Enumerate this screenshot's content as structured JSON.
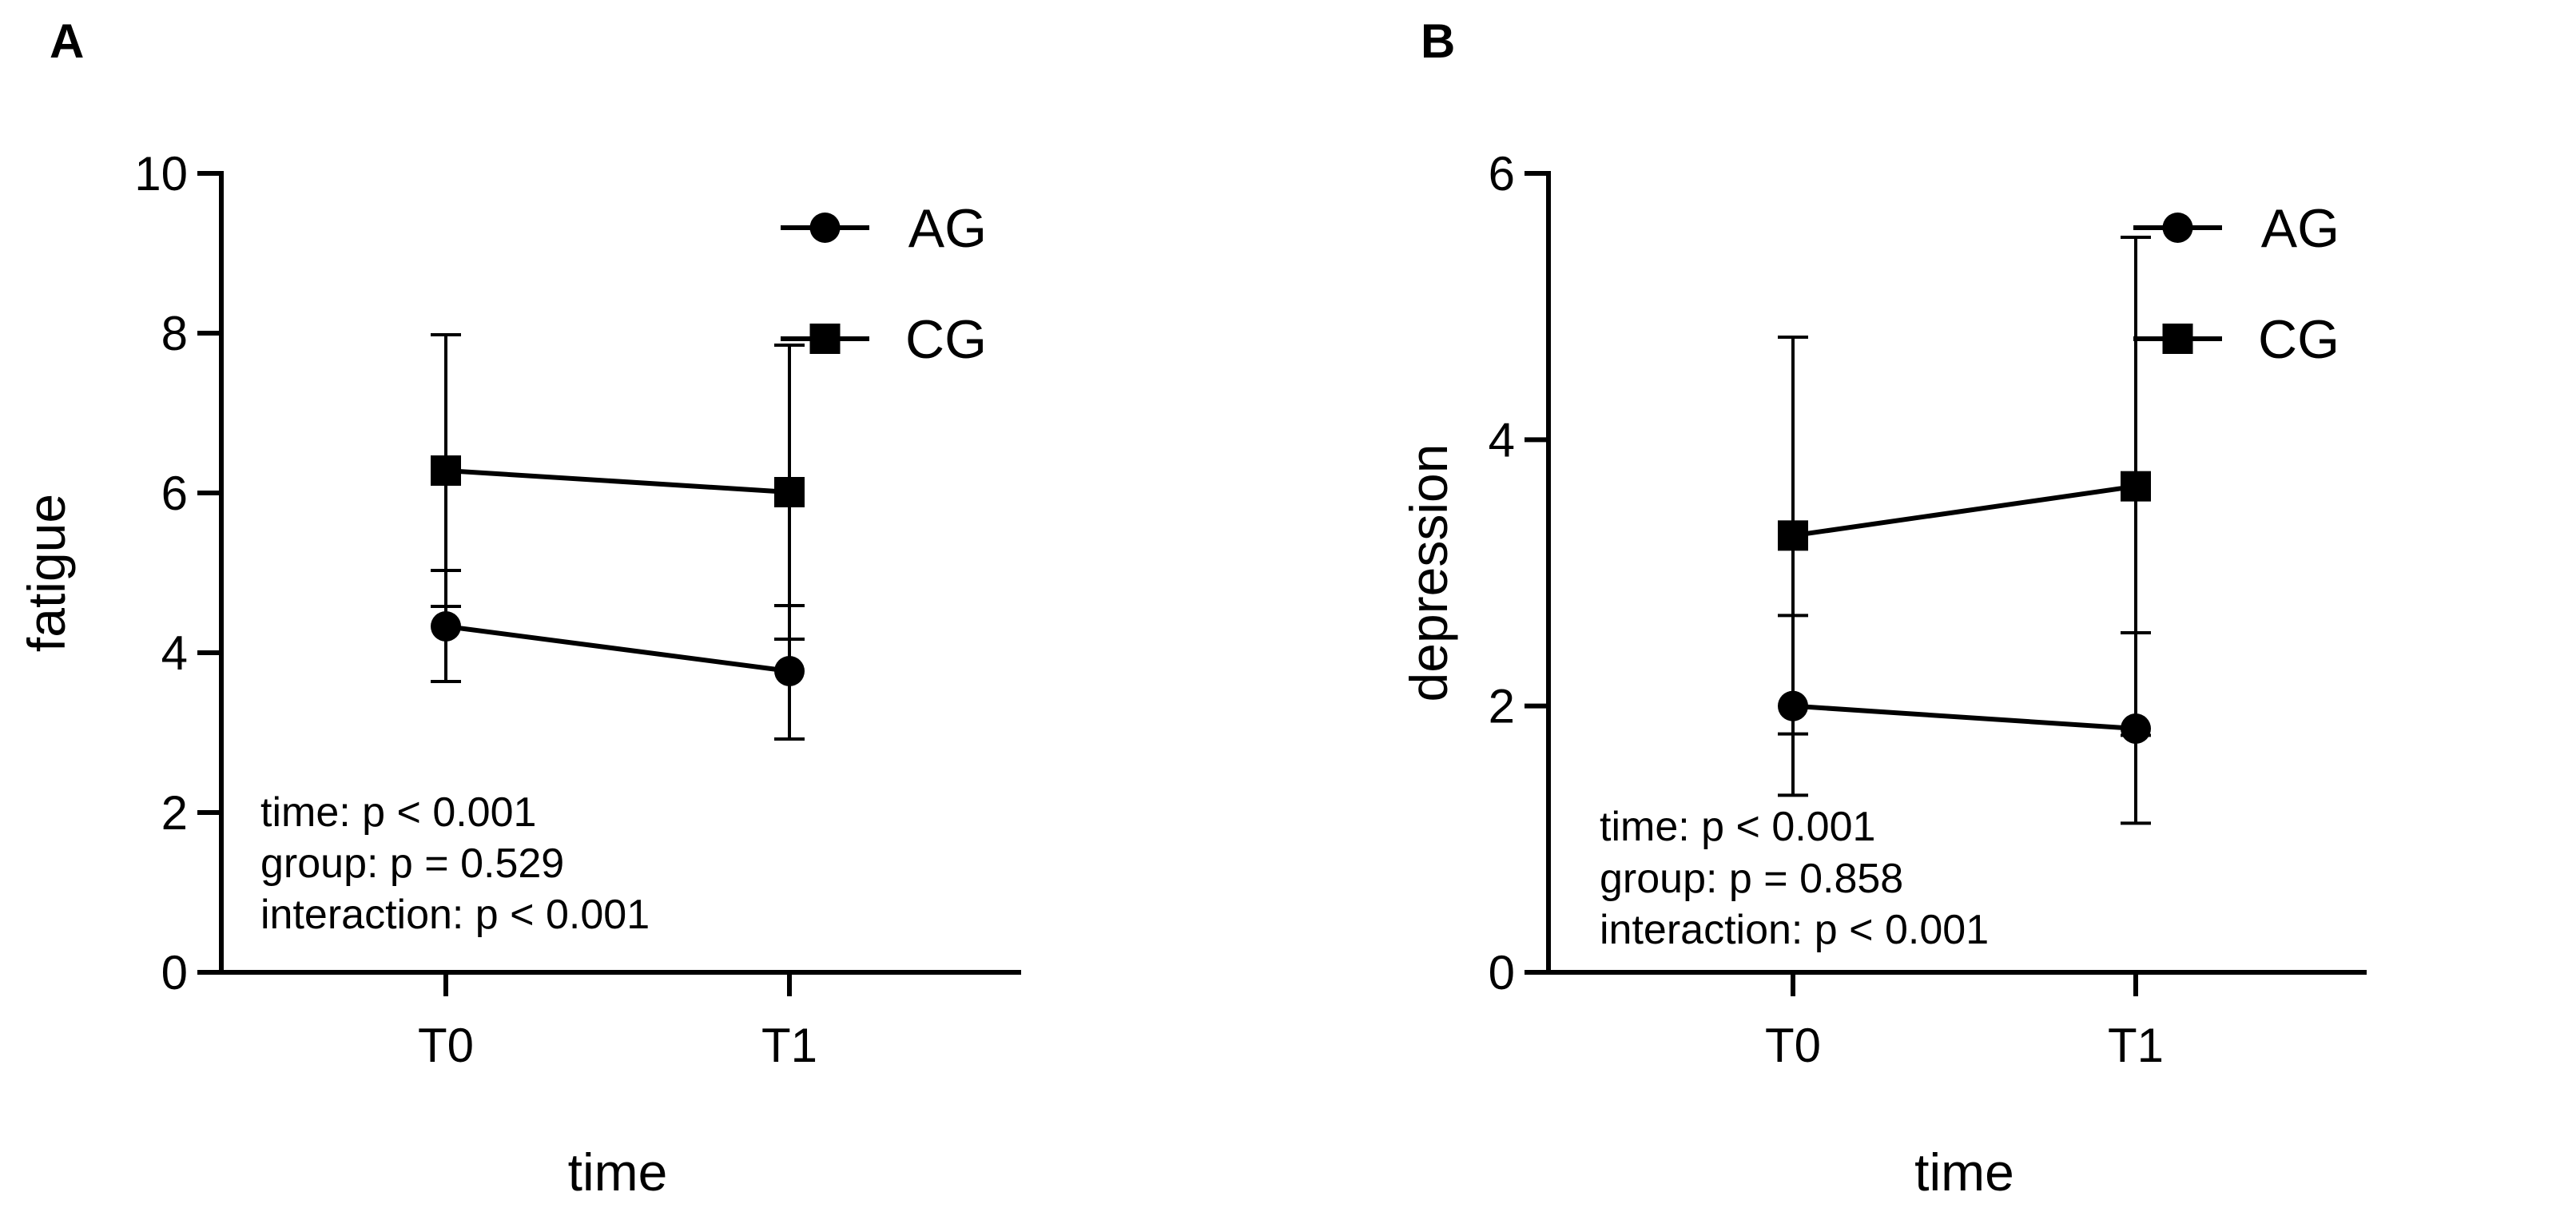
{
  "chart_data": [
    {
      "panel": "A",
      "type": "line",
      "xlabel": "time",
      "ylabel": "fatigue",
      "categories": [
        "T0",
        "T1"
      ],
      "ylim": [
        0,
        10
      ],
      "yticks": [
        0,
        2,
        4,
        6,
        8,
        10
      ],
      "series": [
        {
          "name": "AG",
          "marker": "circle",
          "values": [
            4.33,
            3.77
          ],
          "upper": [
            5.03,
            4.59
          ],
          "lower": [
            3.64,
            2.92
          ]
        },
        {
          "name": "CG",
          "marker": "square",
          "values": [
            6.28,
            6.01
          ],
          "upper": [
            7.98,
            7.85
          ],
          "lower": [
            4.58,
            4.17
          ]
        }
      ],
      "stats": [
        "time: p < 0.001",
        "group: p = 0.529",
        "interaction: p < 0.001"
      ]
    },
    {
      "panel": "B",
      "type": "line",
      "xlabel": "time",
      "ylabel": "depression",
      "categories": [
        "T0",
        "T1"
      ],
      "ylim": [
        0,
        6
      ],
      "yticks": [
        0,
        2,
        4,
        6
      ],
      "series": [
        {
          "name": "AG",
          "marker": "circle",
          "values": [
            2.0,
            1.83
          ],
          "upper": [
            2.68,
            2.55
          ],
          "lower": [
            1.33,
            1.12
          ]
        },
        {
          "name": "CG",
          "marker": "square",
          "values": [
            3.28,
            3.65
          ],
          "upper": [
            4.77,
            5.52
          ],
          "lower": [
            1.79,
            1.78
          ]
        }
      ],
      "stats": [
        "time: p < 0.001",
        "group: p = 0.858",
        "interaction: p < 0.001"
      ]
    }
  ]
}
